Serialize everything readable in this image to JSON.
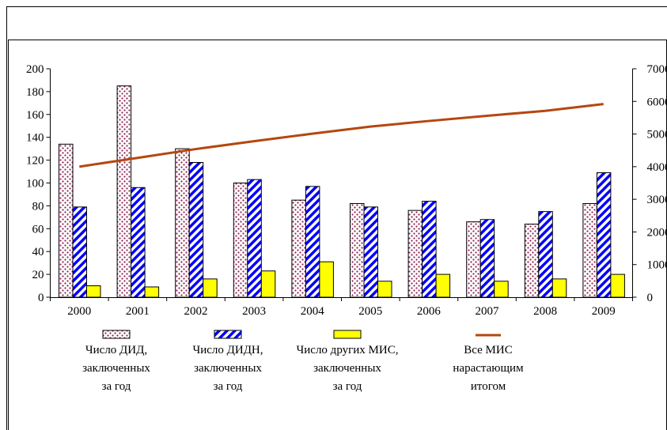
{
  "chart_data": {
    "type": "bar",
    "categories": [
      "2000",
      "2001",
      "2002",
      "2003",
      "2004",
      "2005",
      "2006",
      "2007",
      "2008",
      "2009"
    ],
    "series": [
      {
        "name": "Число ДИД, заключенных за год",
        "kind": "bar",
        "axis": "left",
        "pattern": "dots",
        "color": "#8b2252",
        "values": [
          134,
          185,
          130,
          100,
          85,
          82,
          76,
          66,
          64,
          82
        ]
      },
      {
        "name": "Число ДИДН, заключенных за год",
        "kind": "bar",
        "axis": "left",
        "pattern": "stripes",
        "color": "#0000ff",
        "values": [
          79,
          96,
          118,
          103,
          97,
          79,
          84,
          68,
          75,
          109
        ]
      },
      {
        "name": "Число других МИС, заключенных за год",
        "kind": "bar",
        "axis": "left",
        "pattern": "solid",
        "color": "#ffff00",
        "values": [
          10,
          9,
          16,
          23,
          31,
          14,
          20,
          14,
          16,
          20
        ]
      },
      {
        "name": "Все МИС нарастающим итогом",
        "kind": "line",
        "axis": "right",
        "color": "#b5470e",
        "values": [
          4000,
          4270,
          4540,
          4780,
          5010,
          5230,
          5400,
          5560,
          5710,
          5920
        ]
      }
    ],
    "ylim_left": [
      0,
      200
    ],
    "yticks_left": [
      0,
      20,
      40,
      60,
      80,
      100,
      120,
      140,
      160,
      180,
      200
    ],
    "ylim_right": [
      0,
      7000
    ],
    "yticks_right_labels": [
      "0",
      "1000",
      "2000",
      "3000",
      "4000",
      "5000",
      "6000",
      "7000"
    ],
    "legend": [
      {
        "lines": [
          "Число ДИД,",
          "заключенных",
          "за год"
        ]
      },
      {
        "lines": [
          "Число ДИДН,",
          "заключенных",
          "за год"
        ]
      },
      {
        "lines": [
          "Число других МИС,",
          "заключенных",
          "за год"
        ]
      },
      {
        "lines": [
          "Все МИС",
          "нарастающим",
          "итогом"
        ]
      }
    ],
    "legend_placement": "bottom",
    "grid": false
  }
}
